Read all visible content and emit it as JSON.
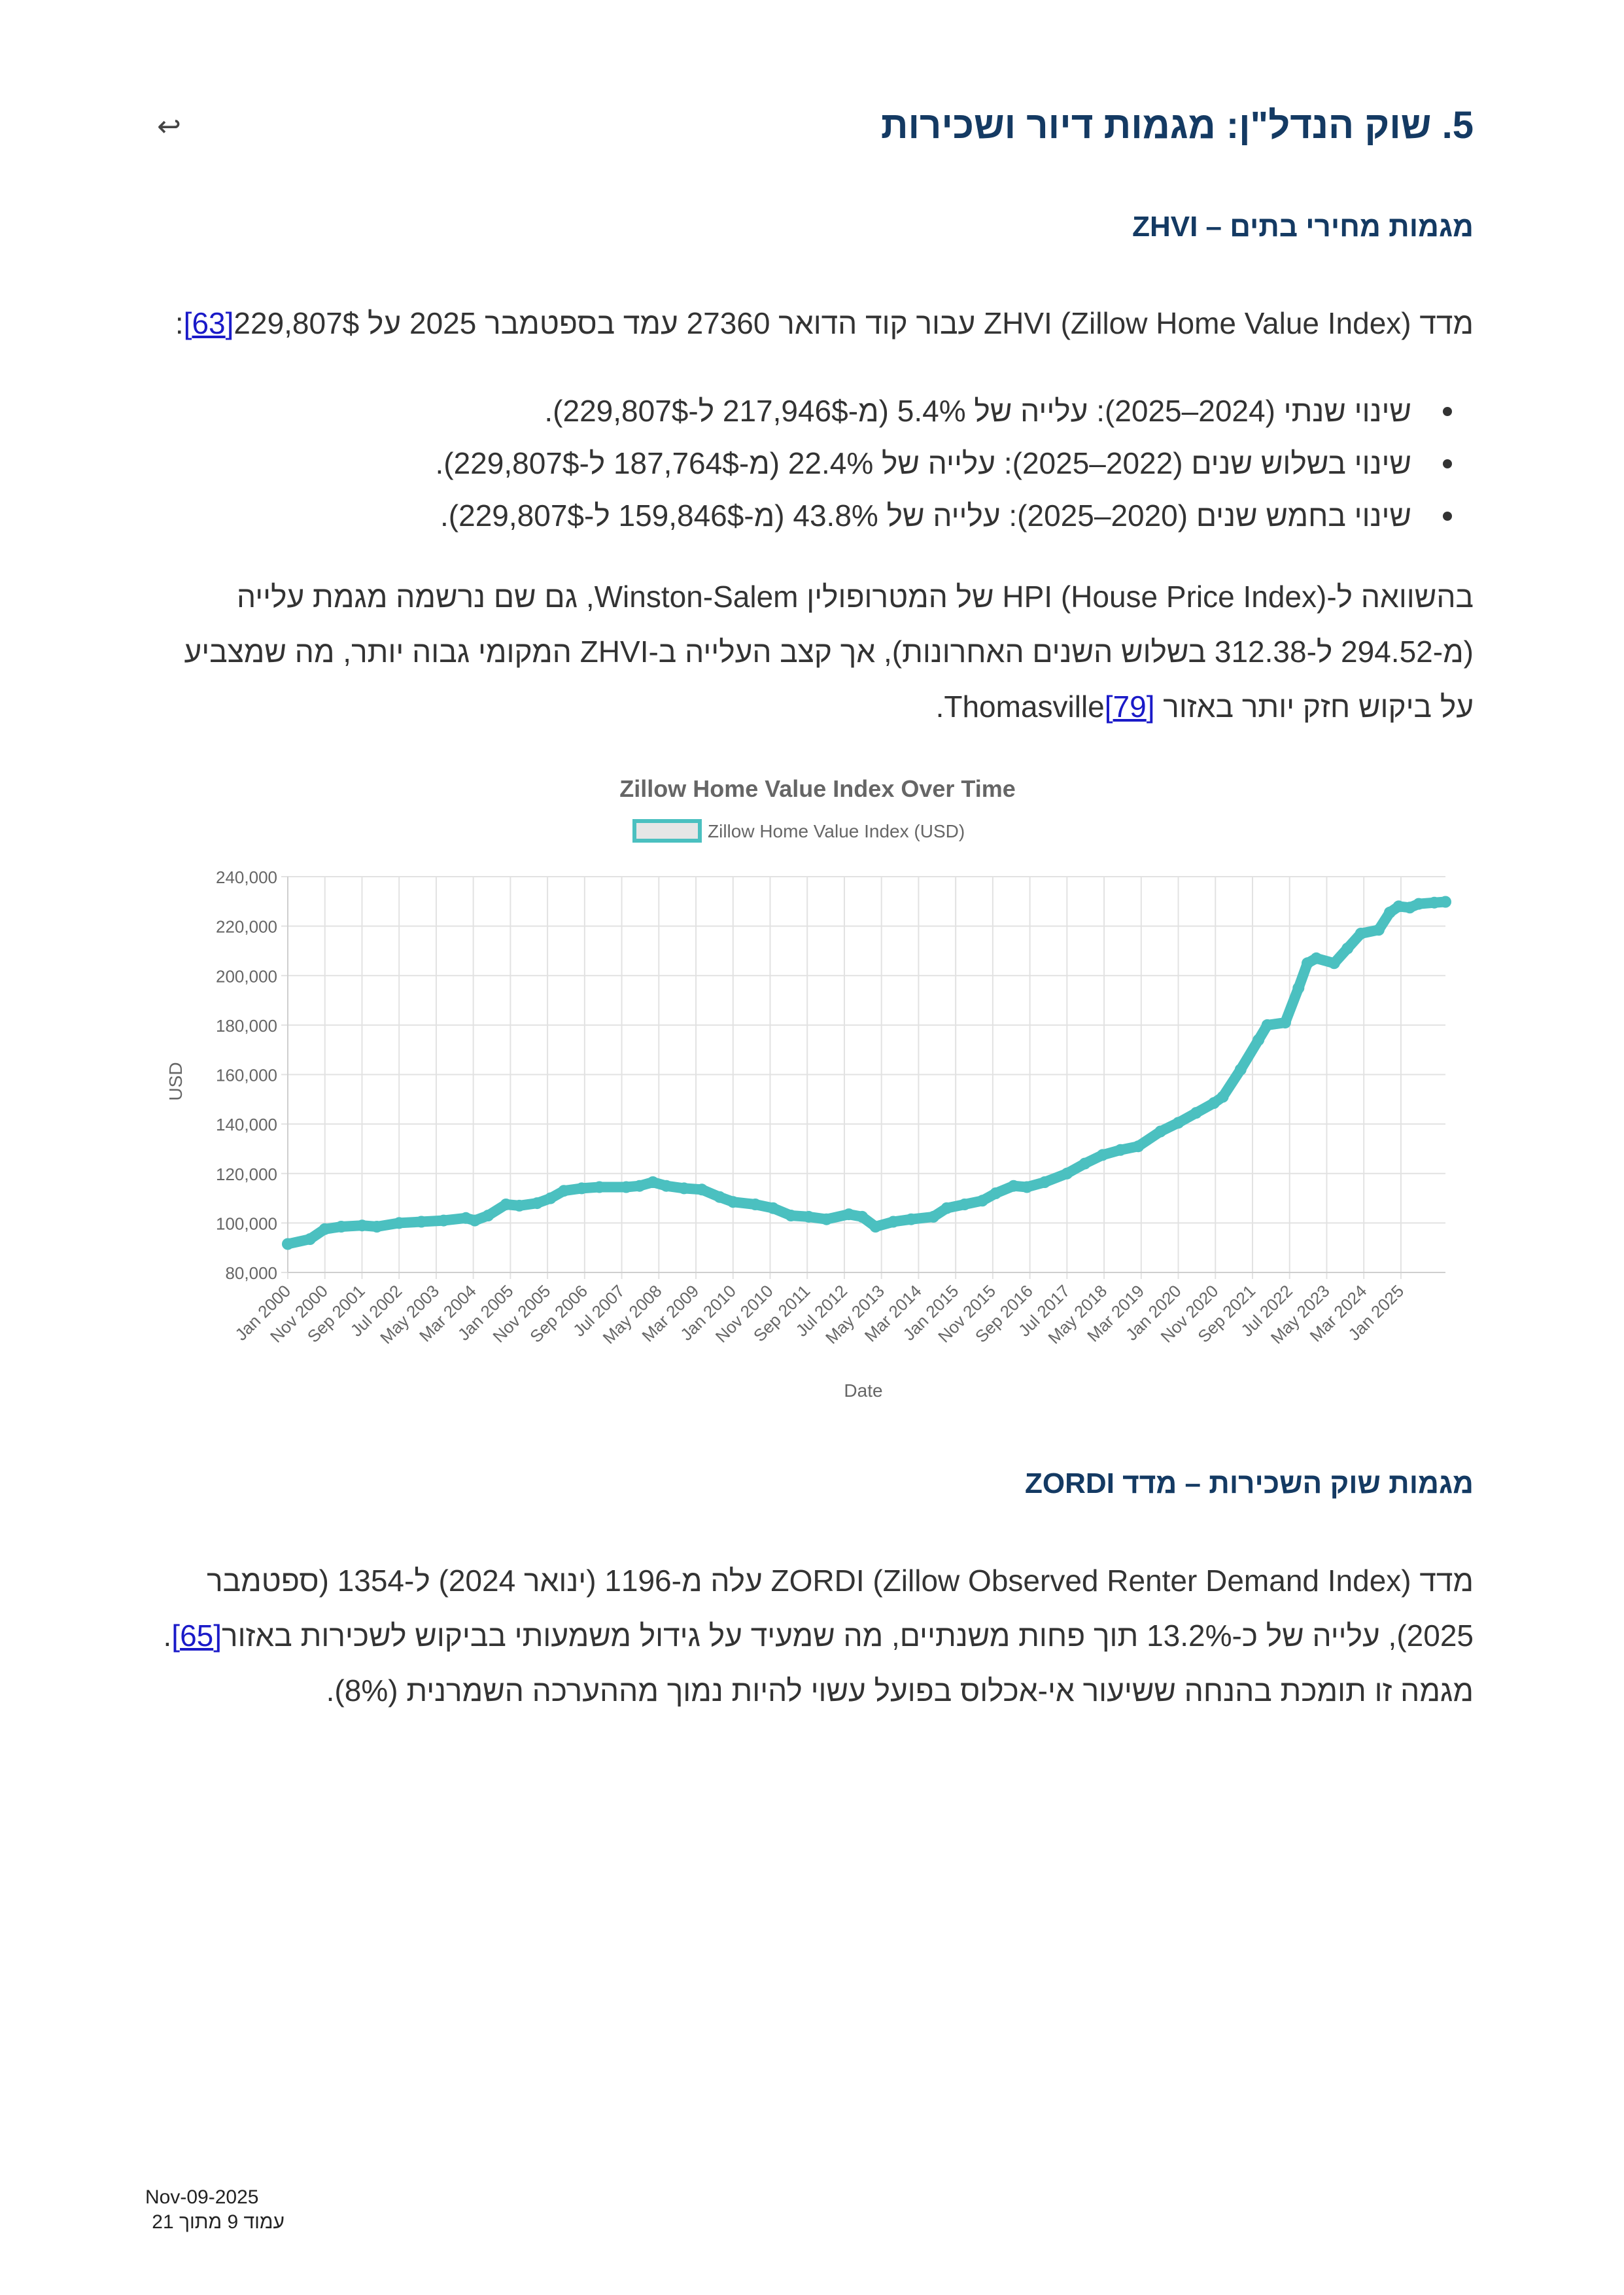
{
  "header": {
    "return_icon": "return-arrow-icon",
    "title": "5. שוק הנדל\"ן: מגמות דיור ושכירות"
  },
  "zhvi": {
    "heading": "מגמות מחירי בתים – ZHVI",
    "intro_text": "מדד ZHVI (Zillow Home Value Index) עבור קוד הדואר 27360 עמד בספטמבר 2025 על 229,807$",
    "intro_cite": "[63]",
    "intro_end": ":",
    "bullets": [
      "שינוי שנתי (2024–2025): עלייה של 5.4% (מ-217,946$ ל-229,807$).",
      "שינוי בשלוש שנים (2022–2025): עלייה של 22.4% (מ-187,764$ ל-229,807$).",
      "שינוי בחמש שנים (2020–2025): עלייה של 43.8% (מ-159,846$ ל-229,807$)."
    ],
    "comparison_text": "בהשוואה ל-HPI (House Price Index) של המטרופולין Winston-Salem, גם שם נרשמה מגמת עלייה (מ-294.52 ל-312.38 בשלוש השנים האחרונות), אך קצב העלייה ב-ZHVI המקומי גבוה יותר, מה שמצביע על ביקוש חזק יותר באזור ",
    "comparison_cite": "[79]",
    "comparison_end": "Thomasville."
  },
  "chart_data": {
    "type": "line",
    "title": "Zillow Home Value Index Over Time",
    "legend": [
      "Zillow Home Value Index (USD)"
    ],
    "legend_position": "top",
    "xlabel": "Date",
    "ylabel": "USD",
    "ylim": [
      80000,
      240000
    ],
    "y_ticks": [
      "80,000",
      "100,000",
      "120,000",
      "140,000",
      "160,000",
      "180,000",
      "200,000",
      "220,000",
      "240,000"
    ],
    "x_tick_labels": [
      "Jan 2000",
      "Nov 2000",
      "Sep 2001",
      "Jul 2002",
      "May 2003",
      "Mar 2004",
      "Jan 2005",
      "Nov 2005",
      "Sep 2006",
      "Jul 2007",
      "May 2008",
      "Mar 2009",
      "Jan 2010",
      "Nov 2010",
      "Sep 2011",
      "Jul 2012",
      "May 2013",
      "Mar 2014",
      "Jan 2015",
      "Nov 2015",
      "Sep 2016",
      "Jul 2017",
      "May 2018",
      "Mar 2019",
      "Jan 2020",
      "Nov 2020",
      "Sep 2021",
      "Jul 2022",
      "May 2023",
      "Mar 2024",
      "Jan 2025"
    ],
    "grid": true,
    "series": [
      {
        "name": "Zillow Home Value Index (USD)",
        "color": "#4bc0c0",
        "points": [
          [
            2000.0,
            91500
          ],
          [
            2000.5,
            93500
          ],
          [
            2000.83,
            97500
          ],
          [
            2001.2,
            98500
          ],
          [
            2001.67,
            99000
          ],
          [
            2002.0,
            98500
          ],
          [
            2002.5,
            100000
          ],
          [
            2003.0,
            100500
          ],
          [
            2003.5,
            101000
          ],
          [
            2004.0,
            102000
          ],
          [
            2004.2,
            101000
          ],
          [
            2004.5,
            103000
          ],
          [
            2004.9,
            107500
          ],
          [
            2005.2,
            107000
          ],
          [
            2005.6,
            108000
          ],
          [
            2005.9,
            110000
          ],
          [
            2006.2,
            113000
          ],
          [
            2006.6,
            114000
          ],
          [
            2007.0,
            114500
          ],
          [
            2007.6,
            114500
          ],
          [
            2007.9,
            115000
          ],
          [
            2008.2,
            116500
          ],
          [
            2008.5,
            115000
          ],
          [
            2008.9,
            114000
          ],
          [
            2009.3,
            113500
          ],
          [
            2009.7,
            110500
          ],
          [
            2010.0,
            108500
          ],
          [
            2010.5,
            107500
          ],
          [
            2010.9,
            106000
          ],
          [
            2011.3,
            103000
          ],
          [
            2011.7,
            102500
          ],
          [
            2012.1,
            101500
          ],
          [
            2012.6,
            103500
          ],
          [
            2012.9,
            102500
          ],
          [
            2013.2,
            98500
          ],
          [
            2013.6,
            100500
          ],
          [
            2014.0,
            101500
          ],
          [
            2014.5,
            102500
          ],
          [
            2014.8,
            106000
          ],
          [
            2015.2,
            107500
          ],
          [
            2015.6,
            109000
          ],
          [
            2015.9,
            112000
          ],
          [
            2016.3,
            115000
          ],
          [
            2016.6,
            114500
          ],
          [
            2017.0,
            116500
          ],
          [
            2017.5,
            120000
          ],
          [
            2017.9,
            124000
          ],
          [
            2018.3,
            127500
          ],
          [
            2018.7,
            129500
          ],
          [
            2019.1,
            131000
          ],
          [
            2019.6,
            137000
          ],
          [
            2020.0,
            140500
          ],
          [
            2020.4,
            144500
          ],
          [
            2020.8,
            148500
          ],
          [
            2021.0,
            151000
          ],
          [
            2021.4,
            162000
          ],
          [
            2021.8,
            174000
          ],
          [
            2022.0,
            180000
          ],
          [
            2022.4,
            181000
          ],
          [
            2022.7,
            195000
          ],
          [
            2022.9,
            205000
          ],
          [
            2023.1,
            207000
          ],
          [
            2023.5,
            205000
          ],
          [
            2023.8,
            211000
          ],
          [
            2024.1,
            217000
          ],
          [
            2024.5,
            218500
          ],
          [
            2024.75,
            225500
          ],
          [
            2024.95,
            228000
          ],
          [
            2025.2,
            227500
          ],
          [
            2025.4,
            229000
          ],
          [
            2025.75,
            229500
          ],
          [
            2026.0,
            229807
          ]
        ]
      }
    ]
  },
  "zordi": {
    "heading": "מגמות שוק השכירות – מדד ZORDI",
    "text": "מדד ZORDI (Zillow Observed Renter Demand Index) עלה מ-1196 (ינואר 2024) ל-1354 (ספטמבר 2025), עלייה של כ-13.2% תוך פחות משנתיים, מה שמעיד על גידול משמעותי בביקוש לשכירות באזור",
    "cite": "[65]",
    "end": ".",
    "text2": "מגמה זו תומכת בהנחה ששיעור אי-אכלוס בפועל עשוי להיות נמוך מההערכה השמרנית (8%)."
  },
  "footer": {
    "date": "Nov-09-2025",
    "page": "עמוד 9 מתוך 21"
  }
}
